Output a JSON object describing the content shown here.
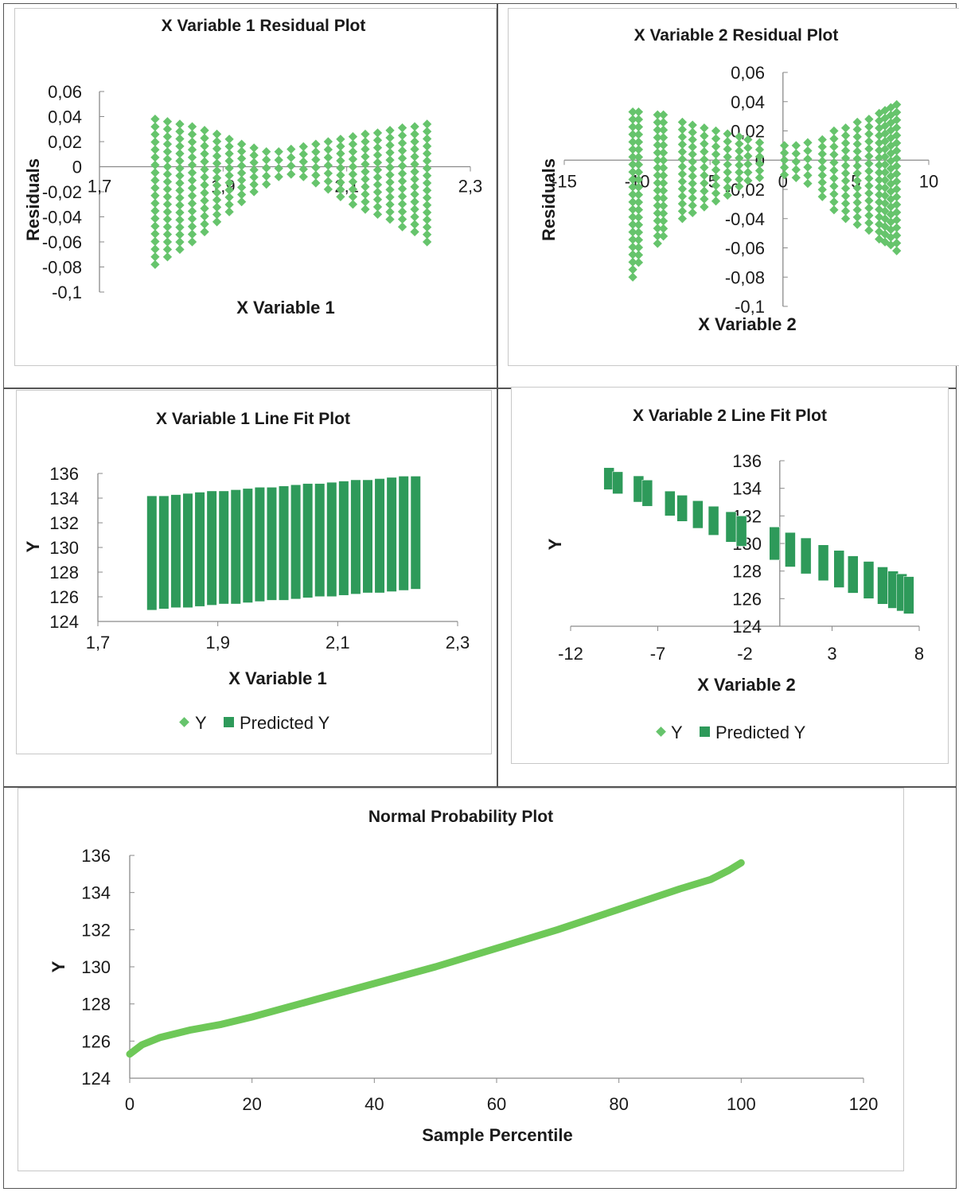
{
  "colors": {
    "y": "#66c46c",
    "predicted": "#2e9a5a",
    "axis": "#8a8a8a",
    "line": "#6ec858"
  },
  "chart_data": [
    {
      "id": "res1",
      "type": "scatter",
      "title": "X Variable 1  Residual Plot",
      "xlabel": "X Variable 1",
      "ylabel": "Residuals",
      "xlim": [
        1.7,
        2.3
      ],
      "ylim": [
        -0.1,
        0.06
      ],
      "xticks": [
        "1,7",
        "1,9",
        "2,1",
        "2,3"
      ],
      "yticks": [
        "0,06",
        "0,04",
        "0,02",
        "0",
        "-0,02",
        "-0,04",
        "-0,06",
        "-0,08",
        "-0,1"
      ],
      "series": [
        {
          "role": "y",
          "columns": [
            {
              "x": 1.79,
              "min": -0.078,
              "max": 0.038
            },
            {
              "x": 1.81,
              "min": -0.072,
              "max": 0.036
            },
            {
              "x": 1.83,
              "min": -0.066,
              "max": 0.034
            },
            {
              "x": 1.85,
              "min": -0.06,
              "max": 0.032
            },
            {
              "x": 1.87,
              "min": -0.052,
              "max": 0.029
            },
            {
              "x": 1.89,
              "min": -0.044,
              "max": 0.026
            },
            {
              "x": 1.91,
              "min": -0.036,
              "max": 0.022
            },
            {
              "x": 1.93,
              "min": -0.028,
              "max": 0.018
            },
            {
              "x": 1.95,
              "min": -0.02,
              "max": 0.015
            },
            {
              "x": 1.97,
              "min": -0.014,
              "max": 0.012
            },
            {
              "x": 1.99,
              "min": -0.008,
              "max": 0.012
            },
            {
              "x": 2.01,
              "min": -0.006,
              "max": 0.014
            },
            {
              "x": 2.03,
              "min": -0.008,
              "max": 0.016
            },
            {
              "x": 2.05,
              "min": -0.013,
              "max": 0.018
            },
            {
              "x": 2.07,
              "min": -0.018,
              "max": 0.02
            },
            {
              "x": 2.09,
              "min": -0.024,
              "max": 0.022
            },
            {
              "x": 2.11,
              "min": -0.03,
              "max": 0.024
            },
            {
              "x": 2.13,
              "min": -0.034,
              "max": 0.026
            },
            {
              "x": 2.15,
              "min": -0.038,
              "max": 0.027
            },
            {
              "x": 2.17,
              "min": -0.042,
              "max": 0.029
            },
            {
              "x": 2.19,
              "min": -0.048,
              "max": 0.031
            },
            {
              "x": 2.21,
              "min": -0.052,
              "max": 0.032
            },
            {
              "x": 2.23,
              "min": -0.06,
              "max": 0.034
            }
          ]
        }
      ]
    },
    {
      "id": "res2",
      "type": "scatter",
      "title": "X Variable 2  Residual Plot",
      "xlabel": "X Variable 2",
      "ylabel": "Residuals",
      "xlim": [
        -15,
        10
      ],
      "ylim": [
        -0.1,
        0.06
      ],
      "xticks": [
        "-15",
        "-10",
        "-5",
        "0",
        "5",
        "10"
      ],
      "yticks": [
        "0,06",
        "0,04",
        "0,02",
        "0",
        "-0,02",
        "-0,04",
        "-0,06",
        "-0,08",
        "-0,1"
      ],
      "series": [
        {
          "role": "y",
          "columns": [
            {
              "x": -10.3,
              "min": -0.08,
              "max": 0.033
            },
            {
              "x": -9.9,
              "min": -0.07,
              "max": 0.033
            },
            {
              "x": -8.6,
              "min": -0.057,
              "max": 0.031
            },
            {
              "x": -8.2,
              "min": -0.052,
              "max": 0.031
            },
            {
              "x": -6.9,
              "min": -0.04,
              "max": 0.026
            },
            {
              "x": -6.2,
              "min": -0.036,
              "max": 0.024
            },
            {
              "x": -5.4,
              "min": -0.032,
              "max": 0.022
            },
            {
              "x": -4.6,
              "min": -0.028,
              "max": 0.02
            },
            {
              "x": -3.8,
              "min": -0.024,
              "max": 0.018
            },
            {
              "x": -3.0,
              "min": -0.018,
              "max": 0.016
            },
            {
              "x": -2.4,
              "min": -0.014,
              "max": 0.014
            },
            {
              "x": -1.6,
              "min": -0.012,
              "max": 0.012
            },
            {
              "x": 0.1,
              "min": -0.01,
              "max": 0.01
            },
            {
              "x": 0.9,
              "min": -0.012,
              "max": 0.01
            },
            {
              "x": 1.7,
              "min": -0.016,
              "max": 0.012
            },
            {
              "x": 2.7,
              "min": -0.025,
              "max": 0.014
            },
            {
              "x": 3.5,
              "min": -0.034,
              "max": 0.02
            },
            {
              "x": 4.3,
              "min": -0.04,
              "max": 0.022
            },
            {
              "x": 5.1,
              "min": -0.044,
              "max": 0.026
            },
            {
              "x": 5.9,
              "min": -0.048,
              "max": 0.028
            },
            {
              "x": 6.6,
              "min": -0.054,
              "max": 0.032
            },
            {
              "x": 7.0,
              "min": -0.056,
              "max": 0.034
            },
            {
              "x": 7.4,
              "min": -0.058,
              "max": 0.036
            },
            {
              "x": 7.8,
              "min": -0.062,
              "max": 0.038
            }
          ]
        }
      ]
    },
    {
      "id": "fit1",
      "type": "scatter",
      "title": "X Variable 1 Line Fit  Plot",
      "xlabel": "X Variable 1",
      "ylabel": "Y",
      "xlim": [
        1.7,
        2.3
      ],
      "ylim": [
        124,
        136
      ],
      "xticks": [
        "1,7",
        "1,9",
        "2,1",
        "2,3"
      ],
      "yticks": [
        "136",
        "134",
        "132",
        "130",
        "128",
        "126",
        "124"
      ],
      "legend": [
        "Y",
        "Predicted Y"
      ],
      "series": [
        {
          "role": "predicted",
          "columns": [
            {
              "x": 1.79,
              "min": 124.9,
              "max": 134.2
            },
            {
              "x": 1.81,
              "min": 125.0,
              "max": 134.2
            },
            {
              "x": 1.83,
              "min": 125.1,
              "max": 134.3
            },
            {
              "x": 1.85,
              "min": 125.1,
              "max": 134.4
            },
            {
              "x": 1.87,
              "min": 125.2,
              "max": 134.5
            },
            {
              "x": 1.89,
              "min": 125.3,
              "max": 134.6
            },
            {
              "x": 1.91,
              "min": 125.4,
              "max": 134.6
            },
            {
              "x": 1.93,
              "min": 125.4,
              "max": 134.7
            },
            {
              "x": 1.95,
              "min": 125.5,
              "max": 134.8
            },
            {
              "x": 1.97,
              "min": 125.6,
              "max": 134.9
            },
            {
              "x": 1.99,
              "min": 125.7,
              "max": 134.9
            },
            {
              "x": 2.01,
              "min": 125.7,
              "max": 135.0
            },
            {
              "x": 2.03,
              "min": 125.8,
              "max": 135.1
            },
            {
              "x": 2.05,
              "min": 125.9,
              "max": 135.2
            },
            {
              "x": 2.07,
              "min": 126.0,
              "max": 135.2
            },
            {
              "x": 2.09,
              "min": 126.0,
              "max": 135.3
            },
            {
              "x": 2.11,
              "min": 126.1,
              "max": 135.4
            },
            {
              "x": 2.13,
              "min": 126.2,
              "max": 135.5
            },
            {
              "x": 2.15,
              "min": 126.3,
              "max": 135.5
            },
            {
              "x": 2.17,
              "min": 126.3,
              "max": 135.6
            },
            {
              "x": 2.19,
              "min": 126.4,
              "max": 135.7
            },
            {
              "x": 2.21,
              "min": 126.5,
              "max": 135.8
            },
            {
              "x": 2.23,
              "min": 126.6,
              "max": 135.8
            }
          ]
        }
      ]
    },
    {
      "id": "fit2",
      "type": "scatter",
      "title": "X Variable 2 Line Fit  Plot",
      "xlabel": "X Variable 2",
      "ylabel": "Y",
      "xlim": [
        -12,
        8
      ],
      "ylim": [
        124,
        136
      ],
      "xticks": [
        "-12",
        "-7",
        "-2",
        "3",
        "8"
      ],
      "yticks": [
        "136",
        "134",
        "132",
        "130",
        "128",
        "126",
        "124"
      ],
      "legend": [
        "Y",
        "Predicted Y"
      ],
      "series": [
        {
          "role": "predicted",
          "columns": [
            {
              "x": -9.8,
              "min": 133.9,
              "max": 135.5
            },
            {
              "x": -9.3,
              "min": 133.6,
              "max": 135.2
            },
            {
              "x": -8.1,
              "min": 133.0,
              "max": 134.9
            },
            {
              "x": -7.6,
              "min": 132.7,
              "max": 134.6
            },
            {
              "x": -6.3,
              "min": 132.0,
              "max": 133.8
            },
            {
              "x": -5.6,
              "min": 131.6,
              "max": 133.5
            },
            {
              "x": -4.7,
              "min": 131.1,
              "max": 133.1
            },
            {
              "x": -3.8,
              "min": 130.6,
              "max": 132.7
            },
            {
              "x": -2.8,
              "min": 130.1,
              "max": 132.3
            },
            {
              "x": -2.2,
              "min": 129.8,
              "max": 132.0
            },
            {
              "x": -0.3,
              "min": 128.8,
              "max": 131.2
            },
            {
              "x": 0.6,
              "min": 128.3,
              "max": 130.8
            },
            {
              "x": 1.5,
              "min": 127.8,
              "max": 130.4
            },
            {
              "x": 2.5,
              "min": 127.3,
              "max": 129.9
            },
            {
              "x": 3.4,
              "min": 126.8,
              "max": 129.5
            },
            {
              "x": 4.2,
              "min": 126.4,
              "max": 129.1
            },
            {
              "x": 5.1,
              "min": 126.0,
              "max": 128.7
            },
            {
              "x": 5.9,
              "min": 125.6,
              "max": 128.3
            },
            {
              "x": 6.5,
              "min": 125.3,
              "max": 128.0
            },
            {
              "x": 7.0,
              "min": 125.1,
              "max": 127.8
            },
            {
              "x": 7.4,
              "min": 124.9,
              "max": 127.6
            }
          ]
        }
      ]
    },
    {
      "id": "npp",
      "type": "line",
      "title": "Normal Probability Plot",
      "xlabel": "Sample Percentile",
      "ylabel": "Y",
      "xlim": [
        0,
        120
      ],
      "ylim": [
        124,
        136
      ],
      "xticks": [
        "0",
        "20",
        "40",
        "60",
        "80",
        "100",
        "120"
      ],
      "yticks": [
        "136",
        "134",
        "132",
        "130",
        "128",
        "126",
        "124"
      ],
      "series": [
        {
          "role": "y",
          "x": [
            0,
            2,
            5,
            10,
            15,
            20,
            30,
            40,
            50,
            60,
            70,
            80,
            90,
            95,
            98,
            100
          ],
          "values": [
            125.3,
            125.8,
            126.2,
            126.6,
            126.9,
            127.3,
            128.2,
            129.1,
            130.0,
            131.0,
            132.0,
            133.1,
            134.2,
            134.7,
            135.2,
            135.6
          ]
        }
      ]
    }
  ]
}
